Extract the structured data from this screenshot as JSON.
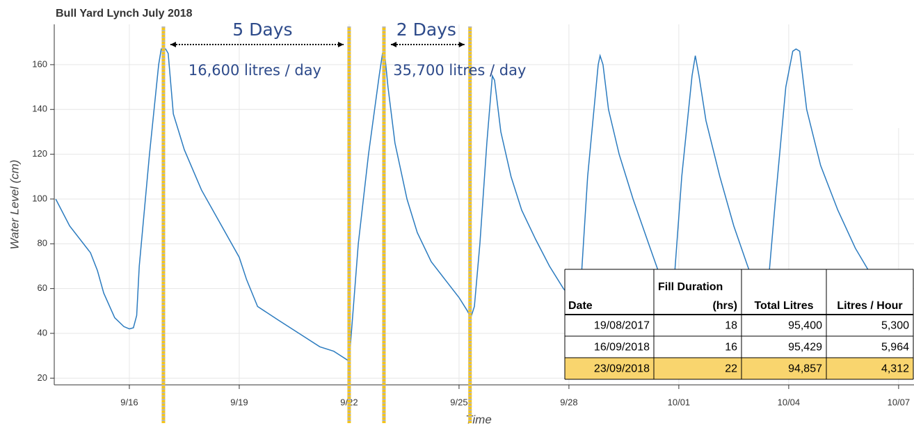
{
  "chart_data": {
    "type": "line",
    "title": "Bull Yard Lynch July 2018",
    "xlabel": "Time",
    "ylabel": "Water Level (cm)",
    "xlim": [
      13.95,
      37.42
    ],
    "xticks": [
      {
        "value": 16,
        "label": "9/16"
      },
      {
        "value": 19,
        "label": "9/19"
      },
      {
        "value": 22,
        "label": "9/22"
      },
      {
        "value": 25,
        "label": "9/25"
      },
      {
        "value": 28,
        "label": "9/28"
      },
      {
        "value": 31,
        "label": "10/01"
      },
      {
        "value": 34,
        "label": "10/04"
      },
      {
        "value": 37,
        "label": "10/07"
      }
    ],
    "ylim": [
      17,
      178
    ],
    "yticks": [
      20,
      40,
      60,
      80,
      100,
      120,
      140,
      160
    ],
    "grid": true,
    "x": [
      13.99,
      14.37,
      14.94,
      15.13,
      15.3,
      15.6,
      15.85,
      16.0,
      16.11,
      16.2,
      16.27,
      16.55,
      16.8,
      16.87,
      16.99,
      17.06,
      17.2,
      17.5,
      17.97,
      18.45,
      19.0,
      19.2,
      19.5,
      20.06,
      20.63,
      21.2,
      21.58,
      21.96,
      22.0,
      22.06,
      22.25,
      22.53,
      22.82,
      22.91,
      22.97,
      23.06,
      23.25,
      23.58,
      23.86,
      24.24,
      24.62,
      25.0,
      25.23,
      25.32,
      25.42,
      25.57,
      25.76,
      25.91,
      25.97,
      26.14,
      26.42,
      26.71,
      27.09,
      27.47,
      27.85,
      28.0,
      28.2,
      28.28,
      28.51,
      28.8,
      28.85,
      28.93,
      29.08,
      29.37,
      29.75,
      30.22,
      30.5,
      30.7,
      30.79,
      31.08,
      31.36,
      31.45,
      31.55,
      31.74,
      32.12,
      32.5,
      32.88,
      33.16,
      33.35,
      33.64,
      33.92,
      34.11,
      34.2,
      34.3,
      34.49,
      34.87,
      35.34,
      35.82,
      36.29,
      36.67
    ],
    "series": [
      {
        "name": "Water Level",
        "color": "#2b7bbf",
        "values": [
          100,
          88,
          76,
          68,
          58,
          47,
          43,
          42,
          42.5,
          48,
          70,
          120,
          160,
          167,
          167,
          165,
          138,
          122,
          104,
          90,
          74,
          64,
          52,
          46,
          40,
          34,
          32,
          28,
          27,
          40,
          80,
          120,
          155,
          165,
          165,
          150,
          125,
          100,
          85,
          72,
          64,
          56,
          50,
          47,
          52,
          80,
          125,
          155,
          153,
          130,
          110,
          95,
          82,
          70,
          60,
          57,
          52,
          50,
          110,
          160,
          164,
          160,
          140,
          120,
          100,
          78,
          65,
          55,
          45,
          110,
          155,
          164,
          155,
          135,
          110,
          88,
          70,
          58,
          45,
          100,
          150,
          166,
          167,
          166,
          140,
          115,
          95,
          78,
          65,
          57
        ]
      }
    ],
    "vlines": [
      16.93,
      22.0,
      22.95,
      25.3
    ],
    "annotations": [
      {
        "text": "5 Days"
      },
      {
        "text": "16,600 litres / day"
      },
      {
        "text": "2 Days"
      },
      {
        "text": "35,700 litres / day"
      }
    ]
  },
  "table": {
    "header": [
      [
        "Date"
      ],
      [
        "Fill  Duration",
        "(hrs)"
      ],
      [
        "Total Litres"
      ],
      [
        "Litres / Hour"
      ]
    ],
    "rows": [
      [
        "19/08/2017",
        "18",
        "95,400",
        "5,300"
      ],
      [
        "16/09/2018",
        "16",
        "95,429",
        "5,964"
      ],
      [
        "23/09/2018",
        "22",
        "94,857",
        "4,312"
      ]
    ],
    "highlight_row": 2,
    "highlight_color": "#f9d56e"
  }
}
